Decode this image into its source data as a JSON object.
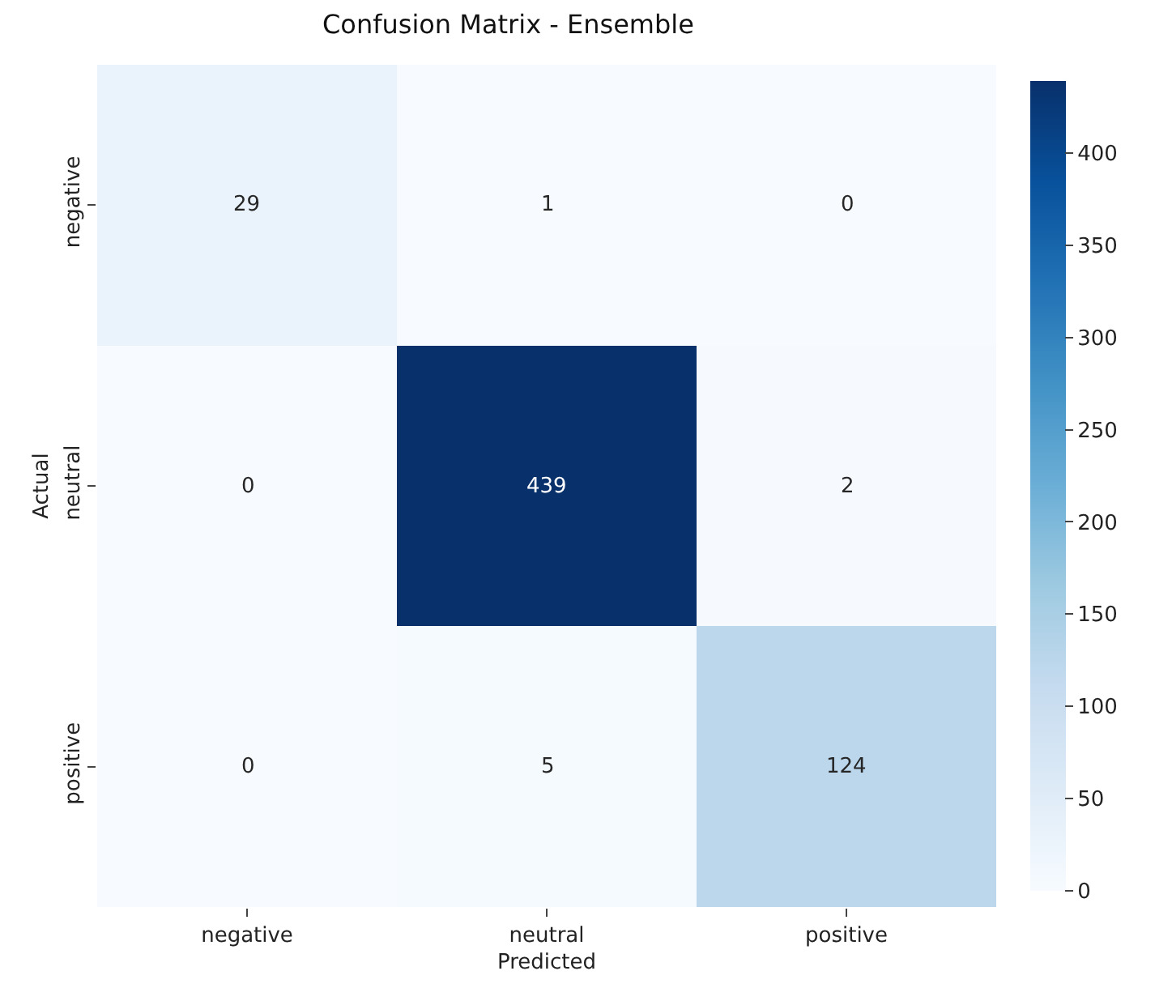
{
  "chart_data": {
    "type": "heatmap",
    "title": "Confusion Matrix - Ensemble",
    "xlabel": "Predicted",
    "ylabel": "Actual",
    "categories": [
      "negative",
      "neutral",
      "positive"
    ],
    "y_categories": [
      "negative",
      "neutral",
      "positive"
    ],
    "cells": [
      [
        29,
        1,
        0
      ],
      [
        0,
        439,
        2
      ],
      [
        0,
        5,
        124
      ]
    ],
    "clim": [
      0,
      439
    ],
    "cticks": [
      0,
      50,
      100,
      150,
      200,
      250,
      300,
      350,
      400
    ],
    "data_labels": true
  }
}
